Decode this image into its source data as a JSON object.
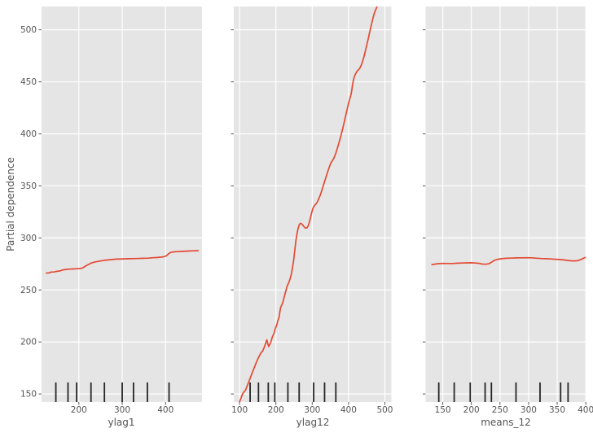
{
  "figure": {
    "ylabel": "Partial dependence",
    "colors": {
      "figure_background": "#ffffff",
      "panel_background": "#e5e5e5",
      "grid": "#ffffff",
      "line": "#e24a33",
      "rug": "#262626",
      "tick_text": "#555555",
      "axis_label_text": "#555555"
    }
  },
  "chart_data": {
    "type": "line",
    "title": "",
    "ylabel": "Partial dependence",
    "ylim": [
      142.3,
      522.4
    ],
    "yticks": [
      150,
      200,
      250,
      300,
      350,
      400,
      450,
      500
    ],
    "grid": true,
    "legend": "none",
    "series_color": "#e24a33",
    "panels": [
      {
        "xlabel": "ylag1",
        "xlim": [
          114,
          484
        ],
        "xticks": [
          200,
          300,
          400
        ],
        "deciles": [
          147,
          175,
          195,
          228,
          259,
          300,
          326,
          358,
          408
        ],
        "line": [
          [
            125,
            266.3
          ],
          [
            131,
            266.4
          ],
          [
            136,
            267.2
          ],
          [
            143,
            267.3
          ],
          [
            149,
            267.9
          ],
          [
            156,
            268.2
          ],
          [
            163,
            269.2
          ],
          [
            170,
            269.7
          ],
          [
            178,
            270.0
          ],
          [
            187,
            270.2
          ],
          [
            196,
            270.4
          ],
          [
            204,
            270.6
          ],
          [
            209,
            271.3
          ],
          [
            215,
            272.8
          ],
          [
            222,
            274.5
          ],
          [
            229,
            275.9
          ],
          [
            237,
            276.9
          ],
          [
            247,
            277.7
          ],
          [
            259,
            278.5
          ],
          [
            272,
            279.1
          ],
          [
            287,
            279.6
          ],
          [
            303,
            279.9
          ],
          [
            318,
            280.0
          ],
          [
            333,
            280.2
          ],
          [
            348,
            280.4
          ],
          [
            360,
            280.6
          ],
          [
            371,
            281.0
          ],
          [
            381,
            281.2
          ],
          [
            389,
            281.5
          ],
          [
            396,
            281.9
          ],
          [
            401,
            282.6
          ],
          [
            406,
            284.4
          ],
          [
            411,
            286.0
          ],
          [
            417,
            286.5
          ],
          [
            427,
            286.8
          ],
          [
            439,
            287.1
          ],
          [
            452,
            287.4
          ],
          [
            464,
            287.6
          ],
          [
            475,
            287.8
          ]
        ]
      },
      {
        "xlabel": "ylag12",
        "xlim": [
          84,
          518
        ],
        "xticks": [
          100,
          200,
          300,
          400,
          500
        ],
        "deciles": [
          129,
          152,
          179,
          197,
          233,
          264,
          304,
          334,
          365
        ],
        "line": [
          [
            100,
            142.5
          ],
          [
            104,
            146
          ],
          [
            108,
            150
          ],
          [
            112,
            152
          ],
          [
            116,
            153.5
          ],
          [
            120,
            157
          ],
          [
            125,
            161.5
          ],
          [
            130,
            166
          ],
          [
            135,
            170.5
          ],
          [
            140,
            175
          ],
          [
            145,
            179.5
          ],
          [
            150,
            183.5
          ],
          [
            155,
            187
          ],
          [
            159,
            189.5
          ],
          [
            163,
            191
          ],
          [
            167,
            194
          ],
          [
            171,
            198
          ],
          [
            175,
            202
          ],
          [
            180,
            195.6
          ],
          [
            184,
            198.2
          ],
          [
            187,
            200.8
          ],
          [
            190,
            204.7
          ],
          [
            195,
            208.6
          ],
          [
            198,
            212.5
          ],
          [
            202,
            216
          ],
          [
            205,
            220
          ],
          [
            207,
            222
          ],
          [
            209,
            224
          ],
          [
            211,
            229
          ],
          [
            213,
            233
          ],
          [
            216,
            235.5
          ],
          [
            219,
            238
          ],
          [
            222,
            242
          ],
          [
            225,
            246
          ],
          [
            228,
            250
          ],
          [
            231,
            253.5
          ],
          [
            234,
            256
          ],
          [
            237,
            258.5
          ],
          [
            240,
            262
          ],
          [
            243,
            266
          ],
          [
            246,
            272
          ],
          [
            249,
            279
          ],
          [
            252,
            288
          ],
          [
            255,
            297
          ],
          [
            258,
            304
          ],
          [
            261,
            309
          ],
          [
            264,
            312.5
          ],
          [
            267,
            314
          ],
          [
            270,
            313.8
          ],
          [
            274,
            312.3
          ],
          [
            278,
            310.5
          ],
          [
            282,
            309.3
          ],
          [
            286,
            309.8
          ],
          [
            290,
            312.5
          ],
          [
            294,
            317.5
          ],
          [
            298,
            323.5
          ],
          [
            302,
            328.5
          ],
          [
            306,
            331
          ],
          [
            310,
            332.5
          ],
          [
            314,
            334.5
          ],
          [
            318,
            337.5
          ],
          [
            323,
            342
          ],
          [
            328,
            347.5
          ],
          [
            333,
            353
          ],
          [
            338,
            358.5
          ],
          [
            343,
            364
          ],
          [
            348,
            369
          ],
          [
            352,
            372.5
          ],
          [
            356,
            374.5
          ],
          [
            360,
            377
          ],
          [
            365,
            381.5
          ],
          [
            370,
            387
          ],
          [
            375,
            393
          ],
          [
            380,
            399.5
          ],
          [
            385,
            406.5
          ],
          [
            390,
            414
          ],
          [
            395,
            422
          ],
          [
            400,
            429.5
          ],
          [
            404,
            434.5
          ],
          [
            407,
            438
          ],
          [
            409,
            442
          ],
          [
            411,
            447
          ],
          [
            413,
            451
          ],
          [
            416,
            455
          ],
          [
            419,
            457.5
          ],
          [
            423,
            460
          ],
          [
            427,
            461.5
          ],
          [
            431,
            463
          ],
          [
            435,
            466
          ],
          [
            439,
            470
          ],
          [
            443,
            475
          ],
          [
            447,
            480.5
          ],
          [
            451,
            486.5
          ],
          [
            455,
            492.5
          ],
          [
            459,
            499
          ],
          [
            463,
            505
          ],
          [
            467,
            511
          ],
          [
            471,
            516
          ],
          [
            475,
            519.5
          ],
          [
            479,
            522.5
          ],
          [
            483,
            525
          ],
          [
            487,
            528
          ]
        ]
      },
      {
        "xlabel": "means_12",
        "xlim": [
          120,
          400.5
        ],
        "xticks": [
          150,
          200,
          250,
          300,
          350,
          400
        ],
        "deciles": [
          143,
          170,
          198,
          224,
          235,
          278,
          320,
          356,
          369
        ],
        "line": [
          [
            131,
            274.4
          ],
          [
            137,
            274.9
          ],
          [
            144,
            275.3
          ],
          [
            152,
            275.5
          ],
          [
            160,
            275.4
          ],
          [
            168,
            275.4
          ],
          [
            176,
            275.7
          ],
          [
            184,
            275.9
          ],
          [
            192,
            276.0
          ],
          [
            200,
            276.1
          ],
          [
            207,
            275.9
          ],
          [
            213,
            275.6
          ],
          [
            219,
            274.9
          ],
          [
            225,
            274.7
          ],
          [
            230,
            275.1
          ],
          [
            235,
            276.6
          ],
          [
            240,
            278.4
          ],
          [
            246,
            279.5
          ],
          [
            253,
            280.0
          ],
          [
            261,
            280.4
          ],
          [
            270,
            280.6
          ],
          [
            279,
            280.8
          ],
          [
            288,
            280.9
          ],
          [
            297,
            281.0
          ],
          [
            306,
            280.9
          ],
          [
            314,
            280.5
          ],
          [
            322,
            280.2
          ],
          [
            330,
            280.0
          ],
          [
            339,
            279.8
          ],
          [
            348,
            279.5
          ],
          [
            356,
            279.2
          ],
          [
            363,
            278.8
          ],
          [
            369,
            278.3
          ],
          [
            375,
            278.0
          ],
          [
            380,
            277.9
          ],
          [
            385,
            278.1
          ],
          [
            390,
            278.9
          ],
          [
            395,
            280.2
          ],
          [
            399,
            281.2
          ]
        ]
      }
    ]
  }
}
